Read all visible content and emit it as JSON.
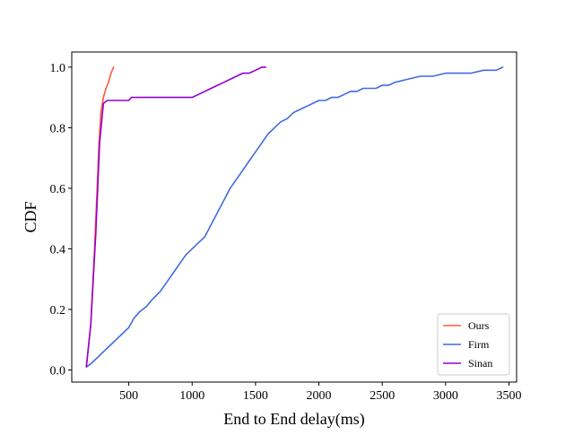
{
  "chart_data": {
    "type": "line",
    "title": "",
    "xlabel": "End to End delay(ms)",
    "ylabel": "CDF",
    "xlim": [
      50,
      3560
    ],
    "ylim": [
      -0.04,
      1.05
    ],
    "xticks": [
      500,
      1000,
      1500,
      2000,
      2500,
      3000,
      3500
    ],
    "xtick_labels": [
      "500",
      "1000",
      "1500",
      "2000",
      "2500",
      "3000",
      "3500"
    ],
    "yticks": [
      0.0,
      0.2,
      0.4,
      0.6,
      0.8,
      1.0
    ],
    "ytick_labels": [
      "0.0",
      "0.2",
      "0.4",
      "0.6",
      "0.8",
      "1.0"
    ],
    "grid": false,
    "legend_position": "lower-right",
    "series": [
      {
        "name": "Ours",
        "color": "#FF5A36",
        "x": [
          165,
          200,
          230,
          250,
          265,
          280,
          300,
          320,
          340,
          360,
          380
        ],
        "y": [
          0.01,
          0.15,
          0.4,
          0.6,
          0.75,
          0.85,
          0.9,
          0.93,
          0.95,
          0.98,
          1.0
        ]
      },
      {
        "name": "Firm",
        "color": "#4169E1",
        "x": [
          165,
          200,
          250,
          300,
          350,
          400,
          450,
          500,
          540,
          580,
          640,
          680,
          750,
          800,
          850,
          900,
          950,
          1000,
          1050,
          1100,
          1150,
          1200,
          1250,
          1300,
          1350,
          1400,
          1450,
          1500,
          1550,
          1600,
          1650,
          1700,
          1750,
          1800,
          1850,
          1900,
          1950,
          2000,
          2050,
          2100,
          2150,
          2200,
          2250,
          2300,
          2350,
          2400,
          2450,
          2500,
          2550,
          2600,
          2700,
          2800,
          2900,
          3000,
          3100,
          3200,
          3300,
          3350,
          3400,
          3450
        ],
        "y": [
          0.01,
          0.02,
          0.04,
          0.06,
          0.08,
          0.1,
          0.12,
          0.14,
          0.17,
          0.19,
          0.21,
          0.23,
          0.26,
          0.29,
          0.32,
          0.35,
          0.38,
          0.4,
          0.42,
          0.44,
          0.48,
          0.52,
          0.56,
          0.6,
          0.63,
          0.66,
          0.69,
          0.72,
          0.75,
          0.78,
          0.8,
          0.82,
          0.83,
          0.85,
          0.86,
          0.87,
          0.88,
          0.89,
          0.89,
          0.9,
          0.9,
          0.91,
          0.92,
          0.92,
          0.93,
          0.93,
          0.93,
          0.94,
          0.94,
          0.95,
          0.96,
          0.97,
          0.97,
          0.98,
          0.98,
          0.98,
          0.99,
          0.99,
          0.99,
          1.0
        ]
      },
      {
        "name": "Sinan",
        "color": "#9400D3",
        "x": [
          165,
          200,
          240,
          270,
          300,
          330,
          400,
          500,
          520,
          600,
          700,
          800,
          900,
          1000,
          1050,
          1100,
          1150,
          1200,
          1250,
          1300,
          1350,
          1400,
          1450,
          1500,
          1550,
          1580
        ],
        "y": [
          0.01,
          0.15,
          0.45,
          0.75,
          0.88,
          0.89,
          0.89,
          0.89,
          0.9,
          0.9,
          0.9,
          0.9,
          0.9,
          0.9,
          0.91,
          0.92,
          0.93,
          0.94,
          0.95,
          0.96,
          0.97,
          0.98,
          0.98,
          0.99,
          1.0,
          1.0
        ]
      }
    ]
  }
}
